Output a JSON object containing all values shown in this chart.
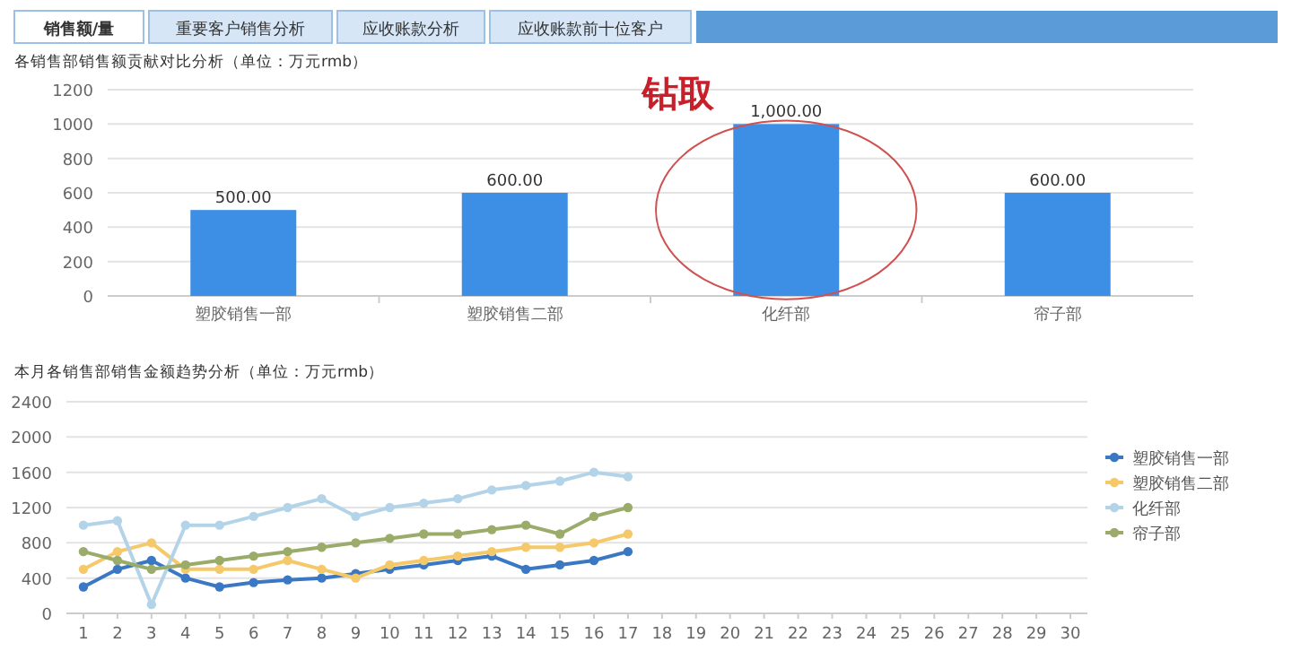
{
  "chart_data": [
    {
      "type": "bar",
      "title": "各销售部销售额贡献对比分析（单位：万元rmb）",
      "categories": [
        "塑胶销售一部",
        "塑胶销售二部",
        "化纤部",
        "帘子部"
      ],
      "values": [
        500,
        600,
        1000,
        600
      ],
      "value_labels": [
        "500.00",
        "600.00",
        "1,000.00",
        "600.00"
      ],
      "color": "#3d8fe6",
      "ylim": [
        0,
        1200
      ],
      "yticks": [
        0,
        200,
        400,
        600,
        800,
        1000,
        1200
      ],
      "grid": "y",
      "annotations": [
        "销售额/量",
        "重要客户销售分析",
        "应收账款分析",
        "应收账款前十位客户",
        "钻取"
      ]
    },
    {
      "type": "line",
      "title": "本月各销售部销售金额趋势分析（单位：万元rmb）",
      "x": [
        1,
        2,
        3,
        4,
        5,
        6,
        7,
        8,
        9,
        10,
        11,
        12,
        13,
        14,
        15,
        16,
        17
      ],
      "xlim": [
        0.5,
        30.5
      ],
      "xticks": [
        1,
        2,
        3,
        4,
        5,
        6,
        7,
        8,
        9,
        10,
        11,
        12,
        13,
        14,
        15,
        16,
        17,
        18,
        19,
        20,
        21,
        22,
        23,
        24,
        25,
        26,
        27,
        28,
        29,
        30
      ],
      "ylim": [
        0,
        2400
      ],
      "yticks": [
        0,
        400,
        800,
        1200,
        1600,
        2000,
        2400
      ],
      "grid": "y",
      "legend": "right",
      "marker": "circle",
      "series": [
        {
          "name": "塑胶销售一部",
          "color": "#3a78c3",
          "values": [
            300,
            500,
            600,
            400,
            300,
            350,
            380,
            400,
            450,
            500,
            550,
            600,
            650,
            500,
            550,
            600,
            700
          ]
        },
        {
          "name": "塑胶销售二部",
          "color": "#f5c96a",
          "values": [
            500,
            700,
            800,
            500,
            500,
            500,
            600,
            500,
            400,
            550,
            600,
            650,
            700,
            750,
            750,
            800,
            900
          ]
        },
        {
          "name": "化纤部",
          "color": "#b3d4e8",
          "values": [
            1000,
            1050,
            100,
            1000,
            1000,
            1100,
            1200,
            1300,
            1100,
            1200,
            1250,
            1300,
            1400,
            1450,
            1500,
            1600,
            1550
          ]
        },
        {
          "name": "帘子部",
          "color": "#9aab6a",
          "values": [
            700,
            600,
            500,
            550,
            600,
            650,
            700,
            750,
            800,
            850,
            900,
            900,
            950,
            1000,
            900,
            1100,
            1200
          ]
        }
      ]
    }
  ]
}
